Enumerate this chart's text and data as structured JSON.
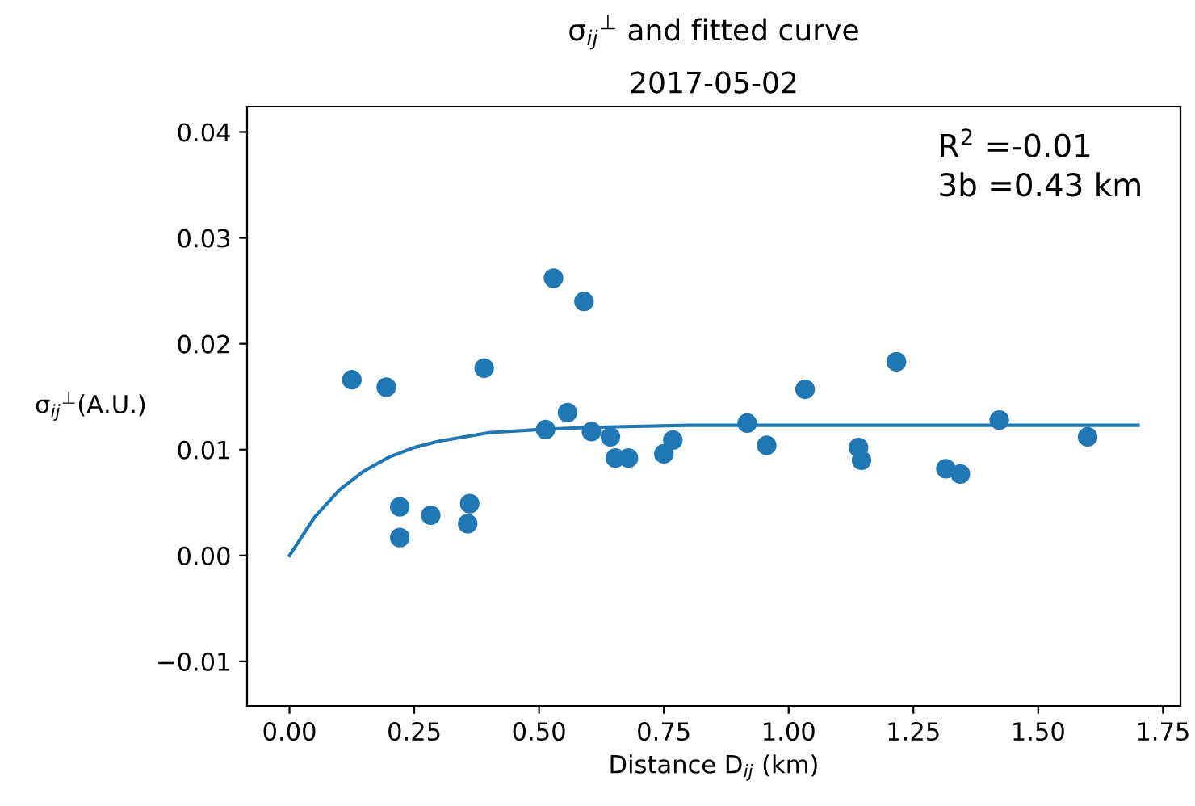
{
  "chart_data": {
    "type": "scatter",
    "title": "σ$_{ij}$$^{⊥}$ and fitted curve",
    "subtitle": "2017-05-02",
    "xlabel": "Distance D$_{ij}$ (km)",
    "ylabel": "σ$_{ij}$$^{⊥}$(A.U.)",
    "annotations": [
      "R$^{2}$ =-0.01",
      "3b =0.43 km"
    ],
    "series": [
      {
        "color": "#1f77b4",
        "marker": "circle",
        "x": [
          0.125,
          0.194,
          0.221,
          0.221,
          0.283,
          0.361,
          0.357,
          0.39,
          0.513,
          0.529,
          0.557,
          0.59,
          0.605,
          0.643,
          0.653,
          0.679,
          0.75,
          0.768,
          0.917,
          0.956,
          1.033,
          1.14,
          1.146,
          1.216,
          1.315,
          1.344,
          1.422,
          1.599
        ],
        "values": [
          0.0166,
          0.0159,
          0.0046,
          0.0017,
          0.0038,
          0.0049,
          0.003,
          0.0177,
          0.0119,
          0.0262,
          0.0135,
          0.024,
          0.0117,
          0.0112,
          0.0092,
          0.0092,
          0.0096,
          0.0109,
          0.0125,
          0.0104,
          0.0157,
          0.0102,
          0.009,
          0.0183,
          0.0082,
          0.0077,
          0.0128,
          0.0112
        ]
      },
      {
        "type": "line",
        "color": "#1f77b4",
        "x": [
          0,
          0.05,
          0.1,
          0.15,
          0.2,
          0.25,
          0.3,
          0.4,
          0.5,
          0.6,
          0.8,
          1.0,
          1.7
        ],
        "values": [
          0,
          0.0036,
          0.0062,
          0.008,
          0.0093,
          0.0102,
          0.0108,
          0.0116,
          0.0119,
          0.0121,
          0.0123,
          0.0123,
          0.0123
        ]
      }
    ],
    "xlim": [
      -0.085,
      1.785
    ],
    "ylim": [
      -0.0142,
      0.0424
    ],
    "xticks": [
      {
        "value": 0,
        "label": "0.00"
      },
      {
        "value": 0.25,
        "label": "0.25"
      },
      {
        "value": 0.5,
        "label": "0.50"
      },
      {
        "value": 0.75,
        "label": "0.75"
      },
      {
        "value": 1.0,
        "label": "1.00"
      },
      {
        "value": 1.25,
        "label": "1.25"
      },
      {
        "value": 1.5,
        "label": "1.50"
      },
      {
        "value": 1.75,
        "label": "1.75"
      }
    ],
    "yticks": [
      {
        "value": -0.01,
        "label": "−0.01"
      },
      {
        "value": 0,
        "label": "0.00"
      },
      {
        "value": 0.01,
        "label": "0.01"
      },
      {
        "value": 0.02,
        "label": "0.02"
      },
      {
        "value": 0.03,
        "label": "0.03"
      },
      {
        "value": 0.04,
        "label": "0.04"
      }
    ],
    "grid": false,
    "legend": false
  }
}
